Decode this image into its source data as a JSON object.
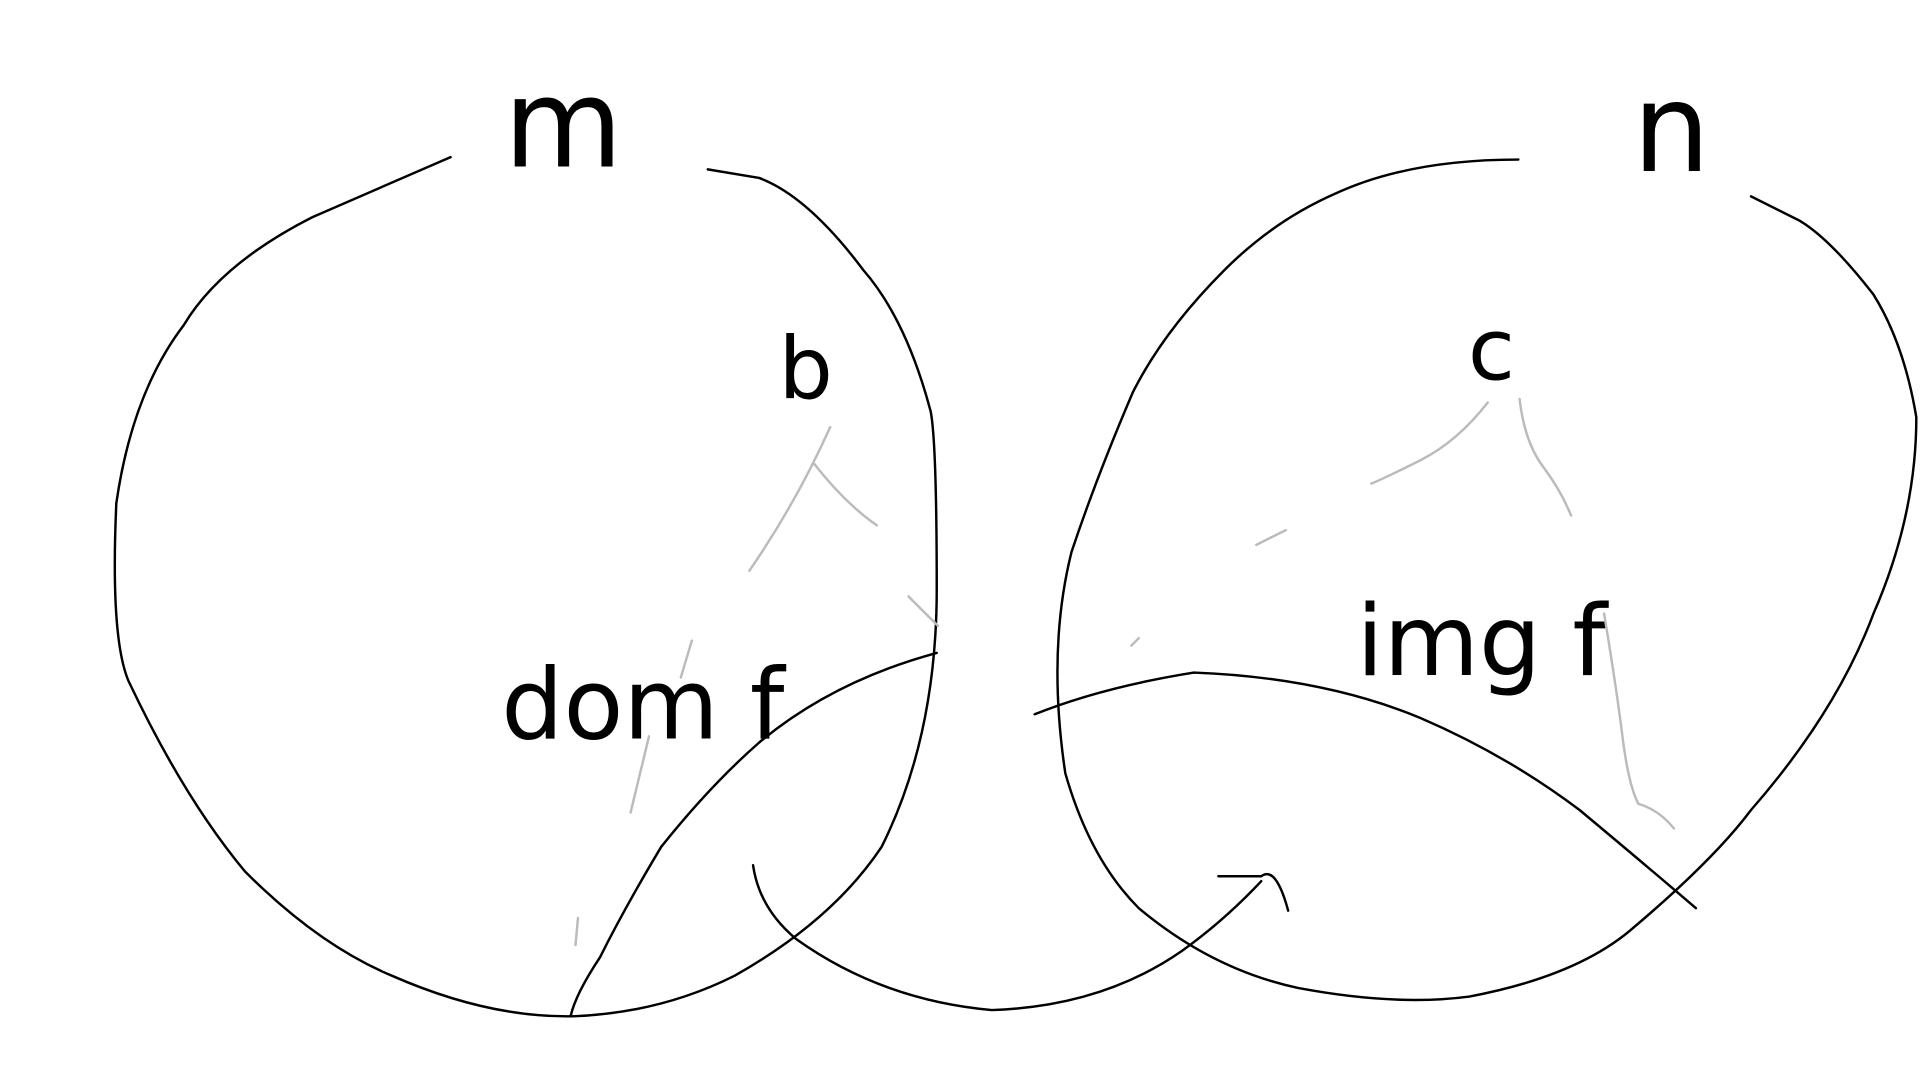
{
  "sets": [
    {
      "label": "m",
      "element": "b",
      "subset": "dom f"
    },
    {
      "label": "n",
      "element": "c",
      "subset": "img f"
    }
  ]
}
